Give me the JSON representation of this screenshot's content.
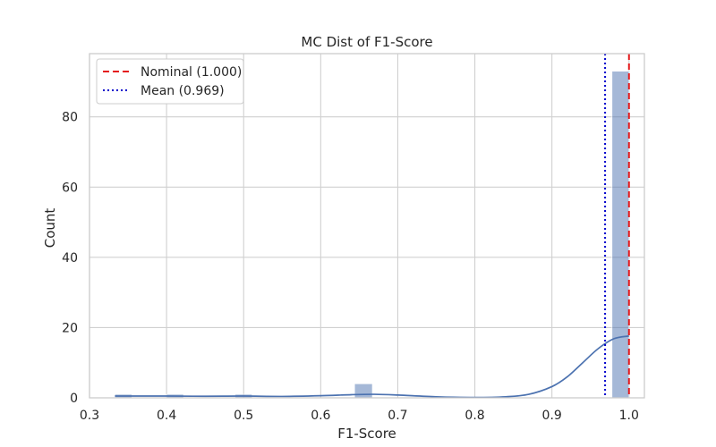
{
  "chart_data": {
    "type": "histogram",
    "title": "MC Dist of F1-Score",
    "xlabel": "F1-Score",
    "ylabel": "Count",
    "xlim": [
      0.3,
      1.02
    ],
    "ylim": [
      0,
      98
    ],
    "x_ticks": [
      "0.3",
      "0.4",
      "0.5",
      "0.6",
      "0.7",
      "0.8",
      "0.9",
      "1.0"
    ],
    "y_ticks": [
      "0",
      "20",
      "40",
      "60",
      "80"
    ],
    "grid": true,
    "legend_position": "top-left",
    "bins": [
      {
        "x0": 0.333,
        "x1": 0.355,
        "count": 1
      },
      {
        "x0": 0.4,
        "x1": 0.422,
        "count": 1
      },
      {
        "x0": 0.489,
        "x1": 0.511,
        "count": 1
      },
      {
        "x0": 0.644,
        "x1": 0.667,
        "count": 4
      },
      {
        "x0": 0.978,
        "x1": 1.0,
        "count": 93
      }
    ],
    "kde": {
      "x": [
        0.333,
        0.4,
        0.45,
        0.5,
        0.55,
        0.6,
        0.64,
        0.67,
        0.7,
        0.75,
        0.8,
        0.84,
        0.87,
        0.9,
        0.92,
        0.94,
        0.96,
        0.98,
        1.0
      ],
      "y": [
        0.5,
        0.5,
        0.45,
        0.5,
        0.4,
        0.6,
        0.9,
        1.0,
        0.8,
        0.3,
        0.1,
        0.3,
        1.0,
        3.2,
        6.0,
        10.0,
        14.0,
        16.8,
        17.6
      ]
    },
    "reference_lines": [
      {
        "label": "Nominal (1.000)",
        "x": 1.0,
        "color": "#e41a1c",
        "style": "dashed"
      },
      {
        "label": "Mean (0.969)",
        "x": 0.969,
        "color": "#0000cc",
        "style": "dotted"
      }
    ],
    "colors": {
      "bar": "#4c72b0",
      "kde": "#4c72b0",
      "grid": "#d0d0d0",
      "frame": "#cccccc"
    }
  }
}
